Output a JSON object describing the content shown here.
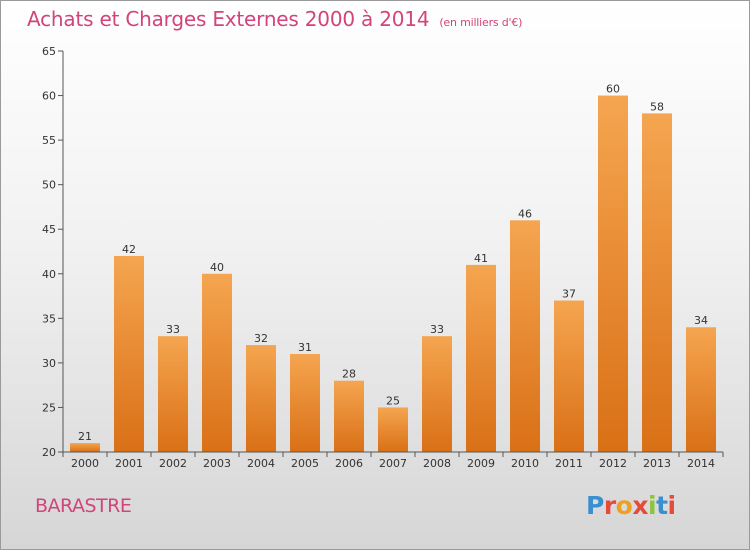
{
  "title": "Achats et Charges Externes 2000 à 2014",
  "unit": "(en milliers d'€)",
  "commune": "BARASTRE",
  "logo": {
    "text": "Proxiti",
    "letter_colors": [
      "#3a8fd0",
      "#e64a3a",
      "#f0a020",
      "#e64a3a",
      "#8cc43a",
      "#3a8fd0",
      "#e64a3a"
    ]
  },
  "colors": {
    "bar_top": "#f5a550",
    "bar_bottom": "#d97016",
    "axis": "#555555",
    "title": "#d2447a"
  },
  "chart_data": {
    "type": "bar",
    "title": "Achats et Charges Externes 2000 à 2014",
    "subtitle": "(en milliers d'€)",
    "xlabel": "",
    "ylabel": "",
    "categories": [
      "2000",
      "2001",
      "2002",
      "2003",
      "2004",
      "2005",
      "2006",
      "2007",
      "2008",
      "2009",
      "2010",
      "2011",
      "2012",
      "2013",
      "2014"
    ],
    "values": [
      21,
      42,
      33,
      40,
      32,
      31,
      28,
      25,
      33,
      41,
      46,
      37,
      60,
      58,
      34
    ],
    "ylim": [
      20,
      65
    ],
    "yticks": [
      20,
      25,
      30,
      35,
      40,
      45,
      50,
      55,
      60,
      65
    ],
    "grid": false,
    "legend": "none"
  }
}
